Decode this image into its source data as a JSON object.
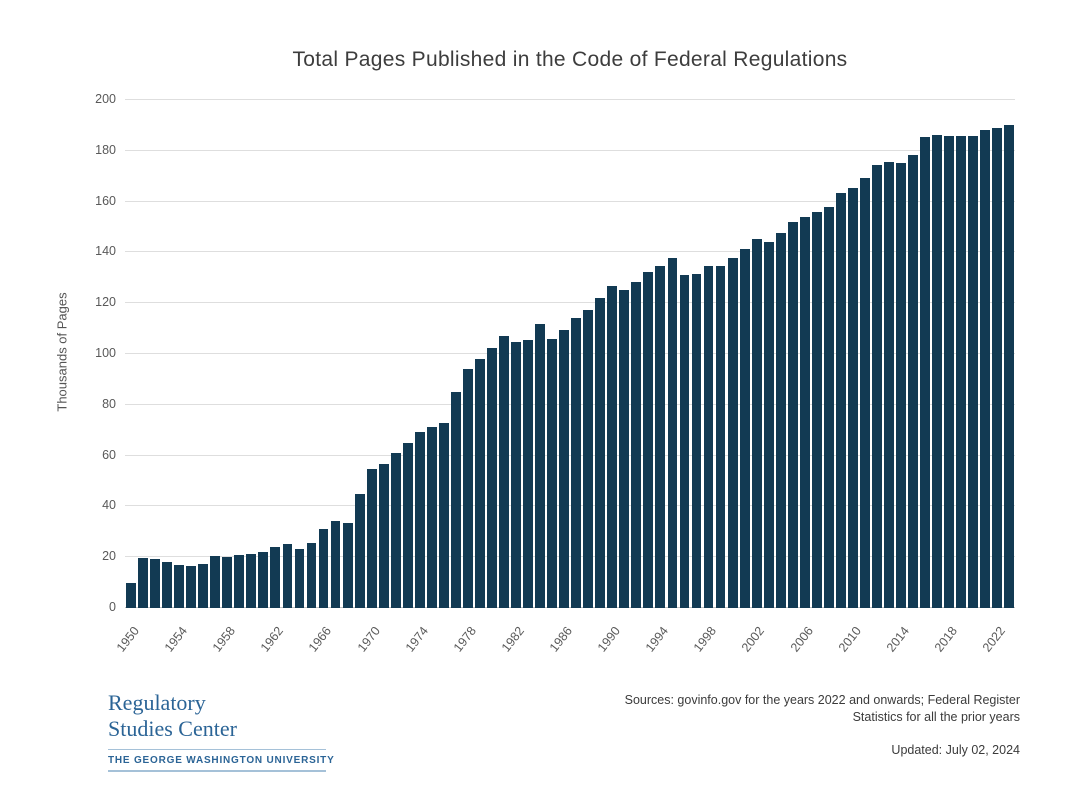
{
  "page": {
    "title": "Total Pages Published in the Code of Federal Regulations"
  },
  "footer": {
    "org_line1": "Regulatory",
    "org_line2": "Studies Center",
    "org_line3": "THE GEORGE WASHINGTON UNIVERSITY",
    "sources_line1": "Sources: govinfo.gov for the years 2022 and onwards; Federal Register",
    "sources_line2": "Statistics for all the prior years",
    "updated": "Updated: July 02, 2024"
  },
  "colors": {
    "bar": "#123a53",
    "logo_blue": "#2b6496",
    "rule_blue": "#a5c1d8",
    "grid": "#dedede",
    "axis_text": "#595959"
  },
  "chart_data": {
    "type": "bar",
    "title": "Total Pages Published in the Code of Federal Regulations",
    "xlabel": "",
    "ylabel": "Thousands of Pages",
    "ylim": [
      0,
      200
    ],
    "ytick_step": 20,
    "grid": "horizontal",
    "legend": null,
    "year_start": 1950,
    "xtick_labels": [
      "1950",
      "1954",
      "1958",
      "1962",
      "1966",
      "1970",
      "1974",
      "1978",
      "1982",
      "1986",
      "1990",
      "1994",
      "1998",
      "2002",
      "2006",
      "2010",
      "2014",
      "2018",
      "2022"
    ],
    "values": [
      9.7,
      19.6,
      19.3,
      18.0,
      17.1,
      16.4,
      17.4,
      20.3,
      20.2,
      20.9,
      21.4,
      22.1,
      24.2,
      25.2,
      23.3,
      25.6,
      31.0,
      34.1,
      33.5,
      44.8,
      54.8,
      56.7,
      61.0,
      64.9,
      69.3,
      71.2,
      72.7,
      85.0,
      94.2,
      98.0,
      102.2,
      107.1,
      104.9,
      105.7,
      111.7,
      105.9,
      109.5,
      114.3,
      117.5,
      122.1,
      126.9,
      125.3,
      128.3,
      132.2,
      134.7,
      138.0,
      131.1,
      131.7,
      134.7,
      134.5,
      138.0,
      141.3,
      145.1,
      144.2,
      147.6,
      151.9,
      154.1,
      156.0,
      157.9,
      163.3,
      165.5,
      169.3,
      174.5,
      175.5,
      175.3,
      178.3,
      185.4,
      186.4,
      186.0,
      186.0,
      186.0,
      188.3,
      188.9,
      190.3
    ]
  }
}
